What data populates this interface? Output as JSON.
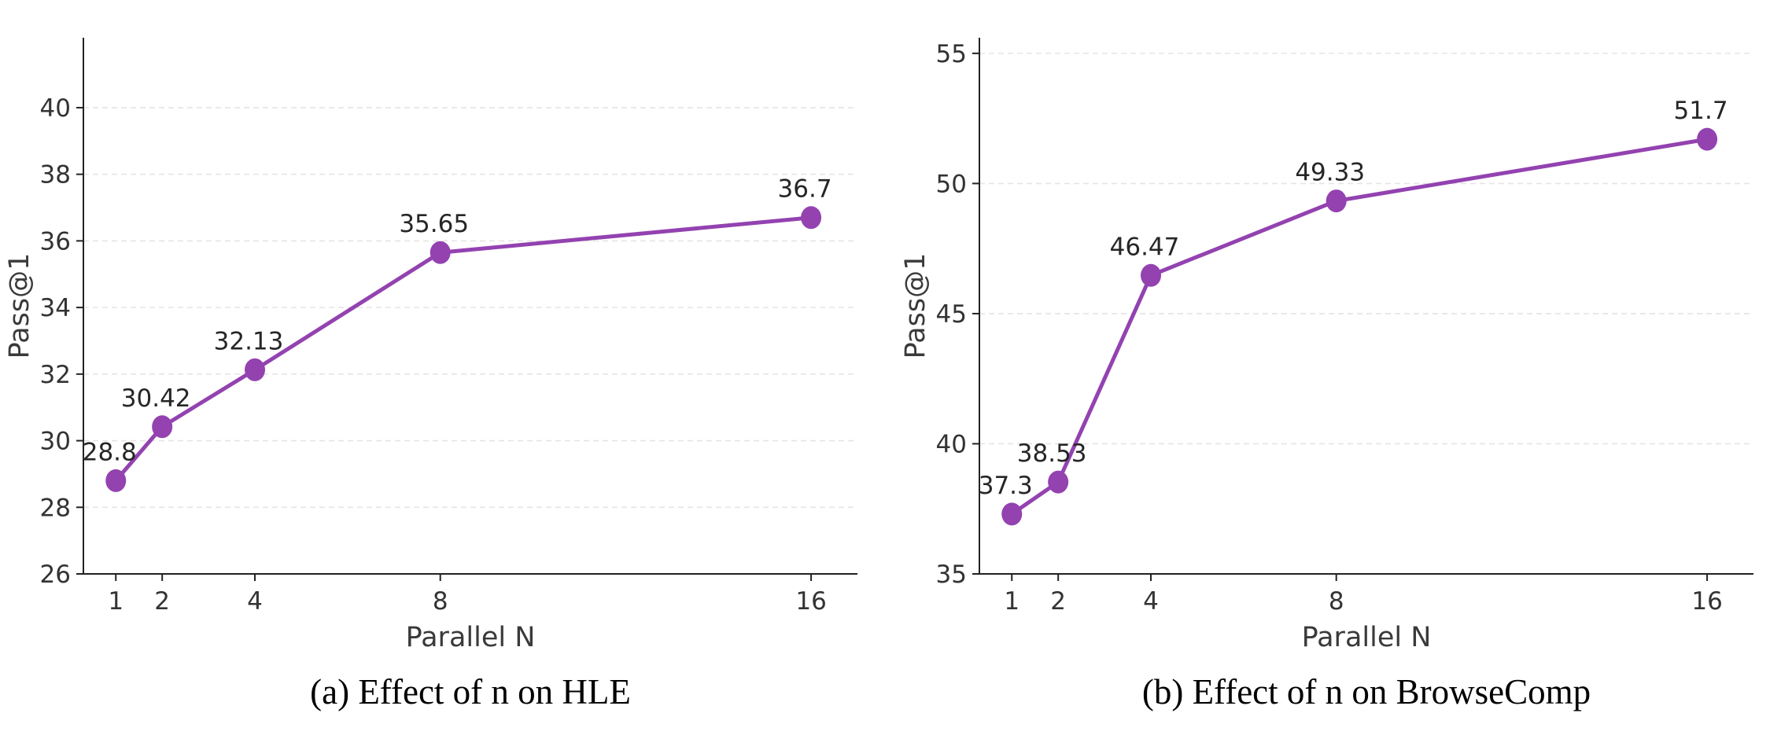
{
  "page": {
    "background": "#ffffff"
  },
  "styles": {
    "series_color": "#9342b0",
    "grid_color": "#e6e4e4",
    "spine_color": "#222222",
    "tick_color": "#222222",
    "tick_label_color": "#333333",
    "axis_label_color": "#3a3a3a",
    "value_label_color": "#262626",
    "caption_color": "#000000"
  },
  "chart_data": [
    {
      "type": "line",
      "caption": "(a) Effect of n on HLE",
      "xlabel": "Parallel N",
      "ylabel": "Pass@1",
      "x": [
        1,
        2,
        4,
        8,
        16
      ],
      "values": [
        28.8,
        30.42,
        32.13,
        35.65,
        36.7
      ],
      "point_labels": [
        "28.8",
        "30.42",
        "32.13",
        "35.65",
        "36.7"
      ],
      "xticks": [
        1,
        2,
        4,
        8,
        16
      ],
      "xtick_labels": [
        "1",
        "2",
        "4",
        "8",
        "16"
      ],
      "yticks": [
        26,
        28,
        30,
        32,
        34,
        36,
        38,
        40
      ],
      "ytick_labels": [
        "26",
        "28",
        "30",
        "32",
        "34",
        "36",
        "38",
        "40"
      ],
      "xlim": [
        0.3,
        17.0
      ],
      "ylim": [
        26,
        42.1
      ],
      "grid": true,
      "legend": null,
      "line_color": "#9342b0"
    },
    {
      "type": "line",
      "caption": "(b) Effect of n on BrowseComp",
      "xlabel": "Parallel N",
      "ylabel": "Pass@1",
      "x": [
        1,
        2,
        4,
        8,
        16
      ],
      "values": [
        37.3,
        38.53,
        46.47,
        49.33,
        51.7
      ],
      "point_labels": [
        "37.3",
        "38.53",
        "46.47",
        "49.33",
        "51.7"
      ],
      "xticks": [
        1,
        2,
        4,
        8,
        16
      ],
      "xtick_labels": [
        "1",
        "2",
        "4",
        "8",
        "16"
      ],
      "yticks": [
        35,
        40,
        45,
        50,
        55
      ],
      "ytick_labels": [
        "35",
        "40",
        "45",
        "50",
        "55"
      ],
      "xlim": [
        0.3,
        17.0
      ],
      "ylim": [
        35,
        55.6
      ],
      "grid": true,
      "legend": null,
      "line_color": "#9342b0"
    }
  ]
}
